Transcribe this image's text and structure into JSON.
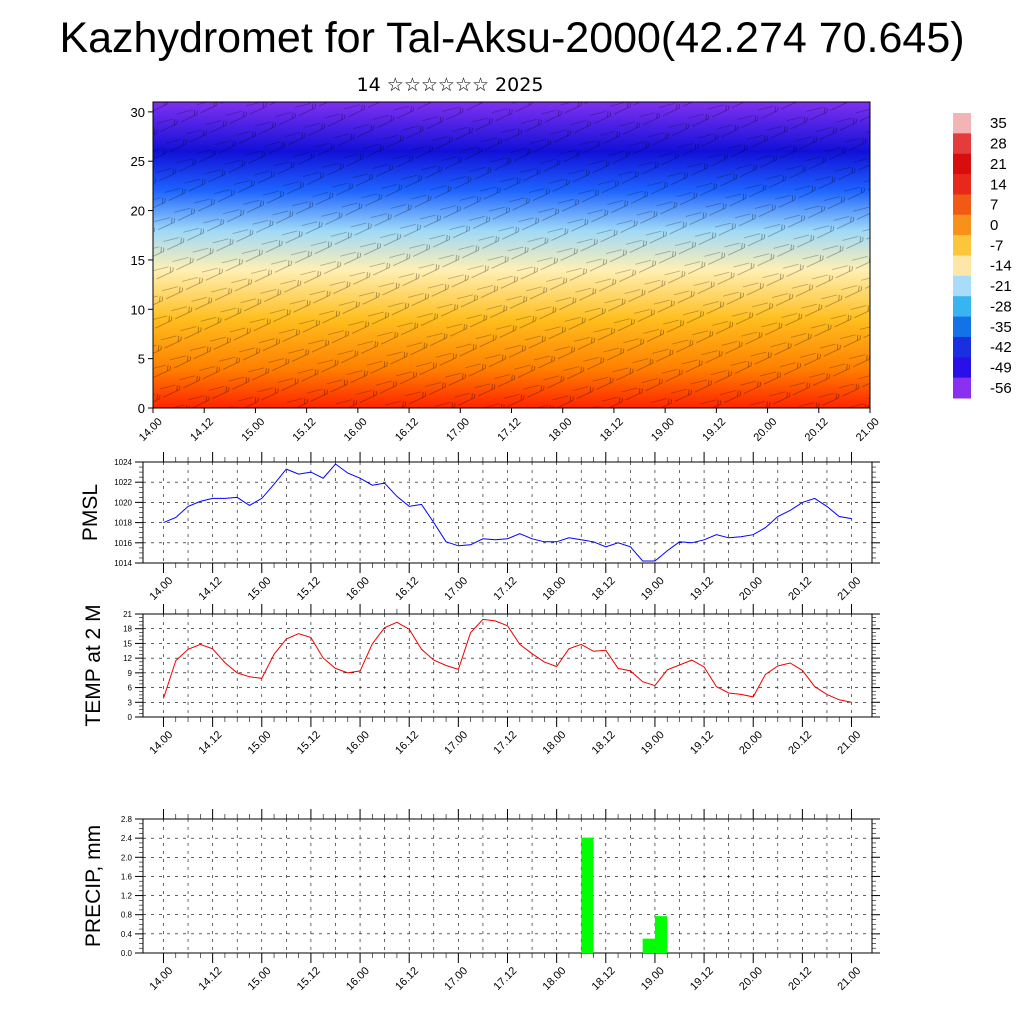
{
  "title": "Kazhydromet for Tal-Aksu-2000(42.274 70.645)",
  "subtitle": "14 ☆☆☆☆☆☆ 2025",
  "x_ticks": [
    "14.00",
    "14.12",
    "15.00",
    "15.12",
    "16.00",
    "16.12",
    "17.00",
    "17.12",
    "18.00",
    "18.12",
    "19.00",
    "19.12",
    "20.00",
    "20.12",
    "21.00"
  ],
  "colorbar": {
    "labels": [
      "35",
      "28",
      "21",
      "14",
      "7",
      "0",
      "-7",
      "-14",
      "-21",
      "-28",
      "-35",
      "-42",
      "-49",
      "-56"
    ],
    "colors": [
      "#f2b4b4",
      "#e43c3c",
      "#d80e0e",
      "#e8281a",
      "#f05a14",
      "#f8901c",
      "#fcc63c",
      "#fce6a8",
      "#a8dcf8",
      "#38b4f0",
      "#1472e8",
      "#1a30e0",
      "#2a10e8",
      "#8a30f0"
    ]
  },
  "chart_data": [
    {
      "type": "heatmap",
      "name": "cross-section",
      "xlabel": "",
      "ylabel": "",
      "y_ticks": [
        "0",
        "5",
        "10",
        "15",
        "20",
        "25",
        "30"
      ],
      "ylim": [
        0,
        31
      ],
      "colors": [
        "#ff2400",
        "#ff8000",
        "#ffbe1e",
        "#fff0b4",
        "#9ed8f8",
        "#1e64ff",
        "#1010d8",
        "#8030f0"
      ],
      "layers": [
        0,
        4,
        9,
        14,
        18,
        22,
        26,
        31
      ]
    },
    {
      "type": "line",
      "ylabel": "PMSL",
      "yticks": [
        "1014",
        "1016",
        "1018",
        "1020",
        "1022",
        "1024"
      ],
      "ylim": [
        1014,
        1024
      ],
      "color": "#0000ff",
      "x": [
        0,
        3,
        6,
        9,
        12,
        15,
        18,
        21,
        24,
        27,
        30,
        33,
        36,
        39,
        42,
        45,
        48,
        51,
        54,
        57,
        60,
        63,
        66,
        69,
        72,
        75,
        78,
        81,
        84,
        87,
        90,
        93,
        96,
        99,
        102,
        105,
        108,
        111,
        114,
        117,
        120,
        123,
        126,
        129,
        132,
        135,
        138,
        141,
        144,
        147,
        150,
        153,
        156,
        159,
        162,
        165,
        168
      ],
      "values": [
        1018.0,
        1018.5,
        1019.6,
        1020.1,
        1020.4,
        1020.4,
        1020.5,
        1019.7,
        1020.4,
        1021.8,
        1023.3,
        1022.8,
        1023.0,
        1022.4,
        1023.8,
        1022.9,
        1022.4,
        1021.7,
        1021.9,
        1020.6,
        1019.6,
        1019.8,
        1018.0,
        1016.1,
        1015.7,
        1015.8,
        1016.4,
        1016.3,
        1016.4,
        1016.9,
        1016.4,
        1016.1,
        1016.1,
        1016.5,
        1016.3,
        1016.1,
        1015.6,
        1016.0,
        1015.6,
        1014.2,
        1014.2,
        1015.2,
        1016.1,
        1016.0,
        1016.3,
        1016.8,
        1016.5,
        1016.6,
        1016.8,
        1017.5,
        1018.6,
        1019.2,
        1020.0,
        1020.4,
        1019.6,
        1018.6,
        1018.4
      ]
    },
    {
      "type": "line",
      "ylabel": "TEMP at 2 M",
      "yticks": [
        "0",
        "3",
        "6",
        "9",
        "12",
        "15",
        "18",
        "21"
      ],
      "ylim": [
        0,
        21
      ],
      "color": "#ee0000",
      "x": [
        0,
        3,
        6,
        9,
        12,
        15,
        18,
        21,
        24,
        27,
        30,
        33,
        36,
        39,
        42,
        45,
        48,
        51,
        54,
        57,
        60,
        63,
        66,
        69,
        72,
        75,
        78,
        81,
        84,
        87,
        90,
        93,
        96,
        99,
        102,
        105,
        108,
        111,
        114,
        117,
        120,
        123,
        126,
        129,
        132,
        135,
        138,
        141,
        144,
        147,
        150,
        153,
        156,
        159,
        162,
        165,
        168
      ],
      "values": [
        3.8,
        11.5,
        13.8,
        14.8,
        13.9,
        11.1,
        9.0,
        8.2,
        7.9,
        12.8,
        15.9,
        17.0,
        16.2,
        12.0,
        9.9,
        9.0,
        9.4,
        14.9,
        18.2,
        19.3,
        17.9,
        13.8,
        11.6,
        10.5,
        9.7,
        17.2,
        19.9,
        19.6,
        18.6,
        14.8,
        12.9,
        11.2,
        10.3,
        13.9,
        14.8,
        13.4,
        13.6,
        9.9,
        9.4,
        7.2,
        6.4,
        9.6,
        10.6,
        11.6,
        10.2,
        6.2,
        4.9,
        4.6,
        4.1,
        8.7,
        10.4,
        11.0,
        9.5,
        6.2,
        4.6,
        3.5,
        3.0
      ]
    },
    {
      "type": "bar",
      "ylabel": "PRECIP, mm",
      "yticks": [
        "0.0",
        "0.4",
        "0.8",
        "1.2",
        "1.6",
        "2.0",
        "2.4",
        "2.8"
      ],
      "ylim": [
        0,
        2.8
      ],
      "color": "#00ff00",
      "bars": [
        {
          "x": 105,
          "value": 2.41
        },
        {
          "x": 120,
          "value": 0.3
        },
        {
          "x": 123,
          "value": 0.77
        }
      ]
    }
  ]
}
